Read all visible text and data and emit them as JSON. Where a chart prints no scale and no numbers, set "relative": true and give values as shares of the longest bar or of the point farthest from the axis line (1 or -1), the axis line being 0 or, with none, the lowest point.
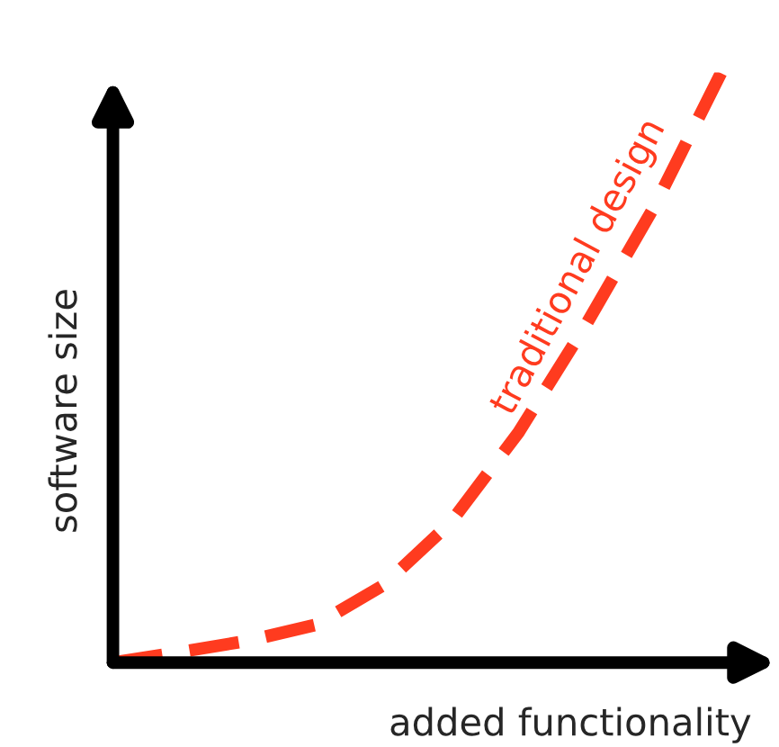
{
  "chart_data": {
    "type": "line",
    "relative": true,
    "xlabel": "added functionality",
    "ylabel": "software size",
    "categories": [
      null,
      null,
      null,
      null,
      null,
      null,
      null,
      null,
      null,
      null
    ],
    "series": [
      {
        "color": "#ff3b1f",
        "values": [
          0,
          0.018,
          0.037,
          0.064,
          0.131,
          0.238,
          0.39,
          0.573,
          0.771,
          1
        ]
      }
    ],
    "annotations": [
      "traditional design"
    ],
    "line_style": "dashed"
  }
}
